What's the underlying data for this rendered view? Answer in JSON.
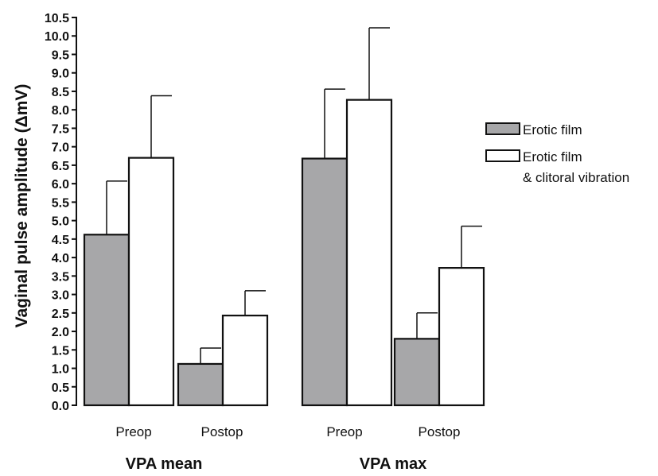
{
  "chart_data": {
    "type": "bar",
    "ylabel": "Vaginal pulse amplitude (ΔmV)",
    "ylim": [
      0,
      10.5
    ],
    "yticks": [
      "0.0",
      "0.5",
      "1.0",
      "1.5",
      "2.0",
      "2.5",
      "3.0",
      "3.5",
      "4.0",
      "4.5",
      "5.0",
      "5.5",
      "6.0",
      "6.5",
      "7.0",
      "7.5",
      "8.0",
      "8.5",
      "9.0",
      "9.5",
      "10.0",
      "10.5"
    ],
    "groups": [
      {
        "label": "VPA mean",
        "categories": [
          "Preop",
          "Postop"
        ]
      },
      {
        "label": "VPA max",
        "categories": [
          "Preop",
          "Postop"
        ]
      }
    ],
    "series": [
      {
        "name": "Erotic film",
        "color": "#a7a7a9",
        "values": [
          4.62,
          1.12,
          6.68,
          1.8
        ],
        "errors": [
          1.45,
          0.43,
          1.88,
          0.7
        ]
      },
      {
        "name_lines": [
          "Erotic film",
          "& clitoral vibration"
        ],
        "color": "#ffffff",
        "values": [
          6.7,
          2.43,
          8.27,
          3.72
        ],
        "errors": [
          1.68,
          0.67,
          1.95,
          1.13
        ]
      }
    ],
    "legend_position": "right",
    "grid": false,
    "error_bars": "upper"
  }
}
